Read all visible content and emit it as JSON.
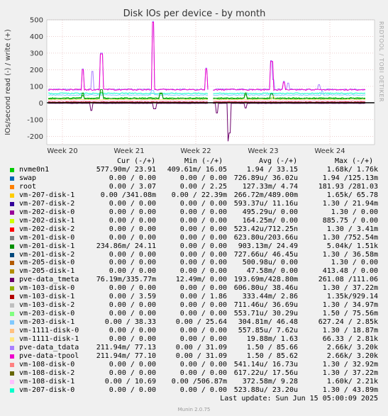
{
  "chart_data": {
    "type": "line",
    "title": "Disk IOs per device - by month",
    "ylabel": "IOs/second read (-) / write (+)",
    "ylim": [
      -250,
      500
    ],
    "yticks": [
      -200,
      -100,
      0,
      100,
      200,
      300,
      400,
      500
    ],
    "xticks": [
      "Week 20",
      "Week 21",
      "Week 22",
      "Week 23",
      "Week 24"
    ],
    "grid": true,
    "columns": {
      "cur": "Cur (-/+)",
      "min": "Min (-/+)",
      "avg": "Avg (-/+)",
      "max": "Max (-/+)"
    },
    "series": [
      {
        "name": "nvme0n1",
        "color": "#00cc00",
        "cur": "577.90m/ 23.91",
        "min": "409.61m/ 16.05",
        "avg": "1.94 / 33.15",
        "max": "1.68k/ 1.76k"
      },
      {
        "name": "swap",
        "color": "#0066b3",
        "cur": "0.00 / 0.00",
        "min": "0.00 / 0.00",
        "avg": "726.89u/ 36.02u",
        "max": "1.94 /125.13m"
      },
      {
        "name": "root",
        "color": "#ff8000",
        "cur": "0.00 / 3.07",
        "min": "0.00 / 2.25",
        "avg": "127.33m/ 4.74",
        "max": "181.93 /281.03"
      },
      {
        "name": "vm-207-disk-1",
        "color": "#ffcc00",
        "cur": "0.00 /341.08m",
        "min": "0.00 / 22.39m",
        "avg": "266.72m/489.00m",
        "max": "1.65k/ 65.78"
      },
      {
        "name": "vm-207-disk-2",
        "color": "#330099",
        "cur": "0.00 / 0.00",
        "min": "0.00 / 0.00",
        "avg": "593.37u/ 11.16u",
        "max": "1.30 / 21.94m"
      },
      {
        "name": "vm-202-disk-0",
        "color": "#990099",
        "cur": "0.00 / 0.00",
        "min": "0.00 / 0.00",
        "avg": "495.29u/ 0.00",
        "max": "1.30 / 0.00"
      },
      {
        "name": "vm-202-disk-1",
        "color": "#ccff00",
        "cur": "0.00 / 0.00",
        "min": "0.00 / 0.00",
        "avg": "164.25m/ 0.00",
        "max": "885.75 / 0.00"
      },
      {
        "name": "vm-202-disk-2",
        "color": "#ff0000",
        "cur": "0.00 / 0.00",
        "min": "0.00 / 0.00",
        "avg": "523.42u/712.25n",
        "max": "1.30 / 3.41m"
      },
      {
        "name": "vm-201-disk-0",
        "color": "#808080",
        "cur": "0.00 / 0.00",
        "min": "0.00 / 0.00",
        "avg": "623.80u/203.66u",
        "max": "1.30 /752.54m"
      },
      {
        "name": "vm-201-disk-1",
        "color": "#008f00",
        "cur": "234.86m/ 24.11",
        "min": "0.00 / 0.00",
        "avg": "903.13m/ 24.49",
        "max": "5.04k/ 1.51k"
      },
      {
        "name": "vm-201-disk-2",
        "color": "#00487d",
        "cur": "0.00 / 0.00",
        "min": "0.00 / 0.00",
        "avg": "727.66u/ 46.45u",
        "max": "1.30 / 36.58m"
      },
      {
        "name": "vm-205-disk-0",
        "color": "#b35a00",
        "cur": "0.00 / 0.00",
        "min": "0.00 / 0.00",
        "avg": "500.98u/ 0.00",
        "max": "1.30 / 0.00"
      },
      {
        "name": "vm-205-disk-1",
        "color": "#b38f00",
        "cur": "0.00 / 0.00",
        "min": "0.00 / 0.00",
        "avg": "47.58m/ 0.00",
        "max": "413.48 / 0.00"
      },
      {
        "name": "pve-data_tmeta",
        "color": "#6b006b",
        "cur": "76.19m/335.77m",
        "min": "12.49m/ 0.00",
        "avg": "193.69m/428.80m",
        "max": "261.08 /111.06"
      },
      {
        "name": "vm-103-disk-0",
        "color": "#8fb300",
        "cur": "0.00 / 0.00",
        "min": "0.00 / 0.00",
        "avg": "606.80u/ 38.46u",
        "max": "1.30 / 37.22m"
      },
      {
        "name": "vm-103-disk-1",
        "color": "#b30000",
        "cur": "0.00 / 3.59",
        "min": "0.00 / 1.86",
        "avg": "333.44m/ 2.86",
        "max": "1.35k/929.14"
      },
      {
        "name": "vm-103-disk-2",
        "color": "#bebebe",
        "cur": "0.00 / 0.00",
        "min": "0.00 / 0.00",
        "avg": "711.46u/ 36.69u",
        "max": "1.30 / 34.97m"
      },
      {
        "name": "vm-203-disk-0",
        "color": "#80ff80",
        "cur": "0.00 / 0.00",
        "min": "0.00 / 0.00",
        "avg": "553.71u/ 30.29u",
        "max": "1.50 / 75.56m"
      },
      {
        "name": "vm-203-disk-1",
        "color": "#80c9ff",
        "cur": "0.00 / 38.33",
        "min": "0.00 / 25.64",
        "avg": "304.81m/ 46.48",
        "max": "627.24 / 2.85k"
      },
      {
        "name": "vm-1111-disk-0",
        "color": "#ffc080",
        "cur": "0.00 / 0.00",
        "min": "0.00 / 0.00",
        "avg": "557.85u/ 7.62u",
        "max": "1.30 / 18.87m"
      },
      {
        "name": "vm-1111-disk-1",
        "color": "#ffe680",
        "cur": "0.00 / 0.00",
        "min": "0.00 / 0.00",
        "avg": "19.88m/ 1.63",
        "max": "66.33 / 2.81k"
      },
      {
        "name": "pve-data_tdata",
        "color": "#aa80ff",
        "cur": "211.94m/ 77.13",
        "min": "0.00 / 31.09",
        "avg": "1.50 / 85.66",
        "max": "2.66k/ 3.20k"
      },
      {
        "name": "pve-data-tpool",
        "color": "#ee00cc",
        "cur": "211.94m/ 77.10",
        "min": "0.00 / 31.09",
        "avg": "1.50 / 85.62",
        "max": "2.66k/ 3.20k"
      },
      {
        "name": "vm-108-disk-0",
        "color": "#ff8080",
        "cur": "0.00 / 0.00",
        "min": "0.00 / 0.00",
        "avg": "541.14u/ 16.73u",
        "max": "1.30 / 32.92m"
      },
      {
        "name": "vm-108-disk-2",
        "color": "#666600",
        "cur": "0.00 / 0.00",
        "min": "0.00 / 0.00",
        "avg": "617.22u/ 17.56u",
        "max": "1.30 / 37.22m"
      },
      {
        "name": "vm-108-disk-1",
        "color": "#ffbfff",
        "cur": "0.00 / 10.69",
        "min": "0.00 /506.87m",
        "avg": "372.58m/ 9.28",
        "max": "1.60k/ 2.21k"
      },
      {
        "name": "vm-207-disk-0",
        "color": "#00ffcc",
        "cur": "0.00 / 0.00",
        "min": "0.00 / 0.00",
        "avg": "523.88u/ 23.20u",
        "max": "1.30 / 43.89m"
      }
    ]
  },
  "footer": {
    "last_update": "Last update: Sun Jun 15 05:00:09 2025",
    "munin_version": "Munin 2.0.75",
    "rrdtool_credit": "RRDTOOL / TOBI OETIKER"
  }
}
